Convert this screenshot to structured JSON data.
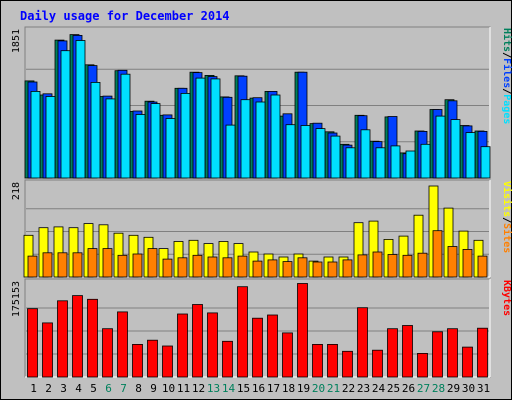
{
  "title": "Daily usage for December 2014",
  "colors": {
    "pages": "#00e0ff",
    "files": "#0040ff",
    "hits": "#00805c",
    "sites": "#ff8000",
    "visits": "#ffff00",
    "kbytes": "#ff0000",
    "title": "#0000ff",
    "weekend_label": "#00805c",
    "weekday_label": "#000000"
  },
  "chart_data": {
    "type": "bar",
    "title": "Daily usage for December 2014",
    "days": [
      "1",
      "2",
      "3",
      "4",
      "5",
      "6",
      "7",
      "8",
      "9",
      "10",
      "11",
      "12",
      "13",
      "14",
      "15",
      "16",
      "17",
      "18",
      "19",
      "20",
      "21",
      "22",
      "23",
      "24",
      "25",
      "26",
      "27",
      "28",
      "29",
      "30",
      "31"
    ],
    "weekend_days": [
      "6",
      "7",
      "13",
      "14",
      "20",
      "21",
      "27",
      "28"
    ],
    "panels": [
      {
        "id": "hits",
        "max_label": "1851",
        "legend": [
          {
            "text": "Pages",
            "color": "#00e0ff"
          },
          {
            "text": "Files",
            "color": "#0040ff"
          },
          {
            "text": "Hits",
            "color": "#00805c"
          }
        ],
        "ymax": 1851,
        "series": [
          {
            "name": "Hits",
            "values": [
              1240,
              1060,
              1760,
              1830,
              1445,
              1040,
              1370,
              850,
              980,
              800,
              1145,
              1350,
              1310,
              1035,
              1305,
              1020,
              1105,
              790,
              1350,
              695,
              590,
              430,
              800,
              470,
              780,
              320,
              600,
              875,
              1000,
              670,
              600
            ]
          },
          {
            "name": "Files",
            "values": [
              1225,
              1075,
              1750,
              1820,
              1435,
              1045,
              1375,
              855,
              970,
              805,
              1145,
              1345,
              1295,
              1030,
              1300,
              1025,
              1105,
              820,
              1350,
              700,
              575,
              420,
              795,
              465,
              785,
              310,
              595,
              875,
              985,
              665,
              595
            ]
          },
          {
            "name": "Pages",
            "values": [
              1105,
              1040,
              1625,
              1755,
              1220,
              1010,
              1325,
              810,
              950,
              760,
              1080,
              1275,
              1265,
              675,
              1000,
              970,
              1060,
              680,
              670,
              630,
              535,
              385,
              615,
              385,
              410,
              345,
              430,
              790,
              745,
              580,
              400
            ]
          }
        ]
      },
      {
        "id": "visits",
        "max_label": "218",
        "legend": [
          {
            "text": "Sites",
            "color": "#ff8000"
          },
          {
            "text": "Visits",
            "color": "#ffff00"
          }
        ],
        "ymax": 218,
        "series": [
          {
            "name": "Visits",
            "values": [
              100,
              118,
              120,
              118,
              128,
              125,
              105,
              100,
              95,
              68,
              85,
              88,
              80,
              85,
              80,
              60,
              55,
              48,
              55,
              38,
              48,
              48,
              130,
              134,
              90,
              98,
              148,
              218,
              165,
              110,
              88
            ]
          },
          {
            "name": "Sites",
            "values": [
              50,
              58,
              58,
              58,
              68,
              68,
              52,
              55,
              68,
              43,
              46,
              52,
              48,
              46,
              50,
              38,
              41,
              37,
              46,
              36,
              36,
              41,
              53,
              60,
              54,
              52,
              57,
              111,
              73,
              66,
              50
            ]
          }
        ]
      },
      {
        "id": "kbytes",
        "max_label": "175153",
        "legend": [
          {
            "text": "KBytes",
            "color": "#ff0000"
          }
        ],
        "ymax": 175153,
        "series": [
          {
            "name": "KBytes",
            "values": [
              130000,
              103000,
              145000,
              155000,
              148000,
              92000,
              124000,
              62000,
              70000,
              59000,
              120000,
              138000,
              122000,
              68000,
              172000,
              112000,
              118000,
              84000,
              178000,
              62000,
              62000,
              49000,
              132000,
              51000,
              92000,
              98000,
              45000,
              86000,
              92000,
              57000,
              93000
            ]
          }
        ]
      }
    ]
  }
}
